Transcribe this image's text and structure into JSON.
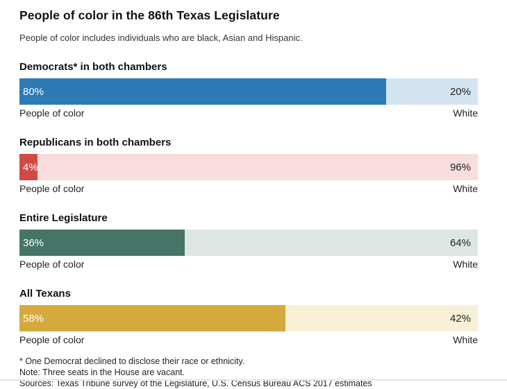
{
  "header": {
    "title": "People of color in the 86th Texas Legislature",
    "subtitle": "People of color includes individuals who are black, Asian and Hispanic."
  },
  "chart_data": {
    "type": "bar",
    "variant": "horizontal-100pct-stacked",
    "title": "People of color in the 86th Texas Legislature",
    "categories": [
      "Democrats* in both chambers",
      "Republicans in both chambers",
      "Entire Legislature",
      "All Texans"
    ],
    "series": [
      {
        "name": "People of color",
        "values": [
          80,
          4,
          36,
          58
        ]
      },
      {
        "name": "White",
        "values": [
          20,
          96,
          64,
          42
        ]
      }
    ],
    "unit": "%",
    "xlim": [
      0,
      100
    ],
    "grid": false,
    "legend_position": "below-each-bar"
  },
  "sections": [
    {
      "heading": "Democrats* in both chambers",
      "poc": {
        "value": 80,
        "label": "80%",
        "color": "#2d7bb6"
      },
      "white": {
        "value": 20,
        "label": "20%",
        "color": "#d3e4f1"
      },
      "left_axis_label": "People of color",
      "right_axis_label": "White"
    },
    {
      "heading": "Republicans in both chambers",
      "poc": {
        "value": 4,
        "label": "4%",
        "color": "#d14b45"
      },
      "white": {
        "value": 96,
        "label": "96%",
        "color": "#f7dddd"
      },
      "left_axis_label": "People of color",
      "right_axis_label": "White"
    },
    {
      "heading": "Entire Legislature",
      "poc": {
        "value": 36,
        "label": "36%",
        "color": "#467568"
      },
      "white": {
        "value": 64,
        "label": "64%",
        "color": "#dee6e3"
      },
      "left_axis_label": "People of color",
      "right_axis_label": "White"
    },
    {
      "heading": "All Texans",
      "poc": {
        "value": 58,
        "label": "58%",
        "color": "#d5a93d"
      },
      "white": {
        "value": 42,
        "label": "42%",
        "color": "#f8f0d7"
      },
      "left_axis_label": "People of color",
      "right_axis_label": "White"
    }
  ],
  "footnotes": {
    "asterisk": "* One Democrat declined to disclose their race or ethnicity.",
    "note": "Note: Three seats in the House are vacant.",
    "sources": "Sources: Texas Tribune survey of the Legislature, U.S. Census Bureau ACS 2017 estimates"
  }
}
